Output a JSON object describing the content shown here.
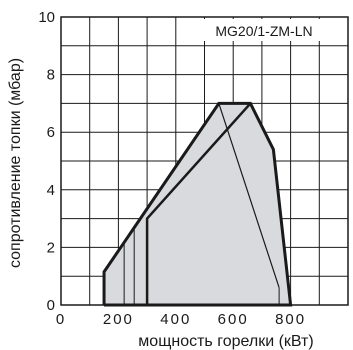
{
  "chart_data": {
    "type": "area",
    "title": "MG20/1-ZM-LN",
    "xlabel": "мощность горелки (кВт)",
    "ylabel": "сопротивление топки (мбар)",
    "xlim": [
      0,
      1000
    ],
    "ylim": [
      0,
      10
    ],
    "x_ticks": [
      0,
      200,
      400,
      600,
      800
    ],
    "x_tick_labels": [
      "0",
      "200",
      "400",
      "600",
      "800"
    ],
    "y_ticks": [
      0,
      2,
      4,
      6,
      8,
      10
    ],
    "y_tick_labels": [
      "0",
      "2",
      "4",
      "6",
      "8",
      "10"
    ],
    "grid": true,
    "series": [
      {
        "role": "outer-envelope",
        "x": [
          150,
          150,
          550,
          660,
          740,
          800,
          150
        ],
        "y": [
          0,
          1.15,
          7.0,
          7.0,
          5.4,
          0,
          0
        ]
      },
      {
        "role": "inner-boundary",
        "x": [
          300,
          300,
          660
        ],
        "y": [
          0,
          3.0,
          7.0
        ]
      },
      {
        "role": "thin-line",
        "x": [
          550,
          760
        ],
        "y": [
          7.0,
          0.6
        ]
      }
    ],
    "annotations": [
      {
        "x": 220,
        "y": 2.2,
        "y_end": 0
      },
      {
        "x": 255,
        "y": 2.75,
        "y_end": 0
      },
      {
        "x": 760,
        "y": 0.6,
        "y_end": 0
      }
    ],
    "colors": {
      "fill": "#d9dade",
      "line": "#1a1a1a",
      "grid": "#1a1a1a"
    }
  }
}
